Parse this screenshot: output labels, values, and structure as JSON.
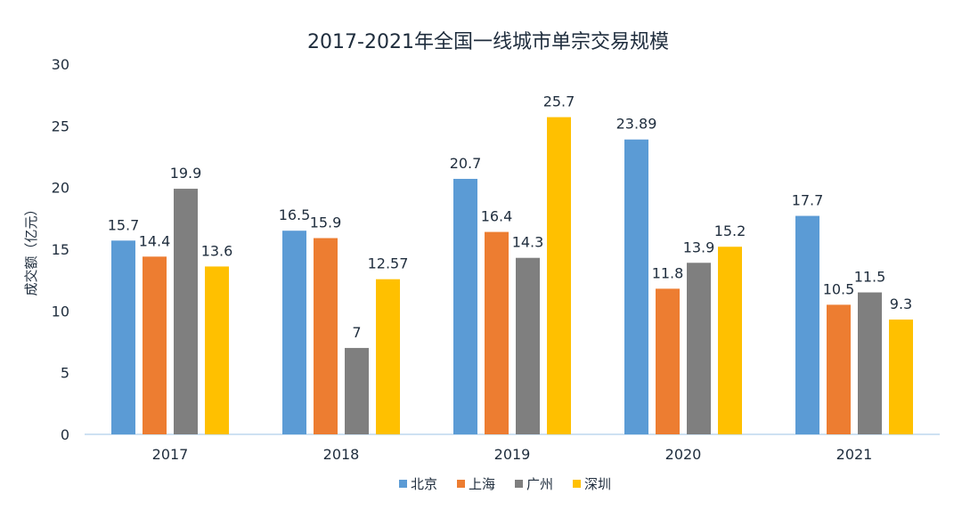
{
  "chart_data": {
    "type": "bar",
    "title": "2017-2021年全国一线城市单宗交易规模",
    "xlabel": "",
    "ylabel": "成交额（亿元）",
    "ylim": [
      0,
      30
    ],
    "yticks": [
      0,
      5,
      10,
      15,
      20,
      25,
      30
    ],
    "grid": false,
    "legend_position": "bottom",
    "categories": [
      "2017",
      "2018",
      "2019",
      "2020",
      "2021"
    ],
    "series": [
      {
        "name": "北京",
        "color": "#5b9bd5",
        "values": [
          15.7,
          16.5,
          20.7,
          23.89,
          17.7
        ],
        "labels": [
          "15.7",
          "16.5",
          "20.7",
          "23.89",
          "17.7"
        ]
      },
      {
        "name": "上海",
        "color": "#ed7d31",
        "values": [
          14.4,
          15.9,
          16.4,
          11.8,
          10.5
        ],
        "labels": [
          "14.4",
          "15.9",
          "16.4",
          "11.8",
          "10.5"
        ]
      },
      {
        "name": "广州",
        "color": "#7f7f7f",
        "values": [
          19.9,
          7,
          14.3,
          13.9,
          11.5
        ],
        "labels": [
          "19.9",
          "7",
          "14.3",
          "13.9",
          "11.5"
        ]
      },
      {
        "name": "深圳",
        "color": "#ffc000",
        "values": [
          13.6,
          12.57,
          25.7,
          15.2,
          9.3
        ],
        "labels": [
          "13.6",
          "12.57",
          "25.7",
          "15.2",
          "9.3"
        ]
      }
    ],
    "axis_color": "#bdd7ee"
  }
}
